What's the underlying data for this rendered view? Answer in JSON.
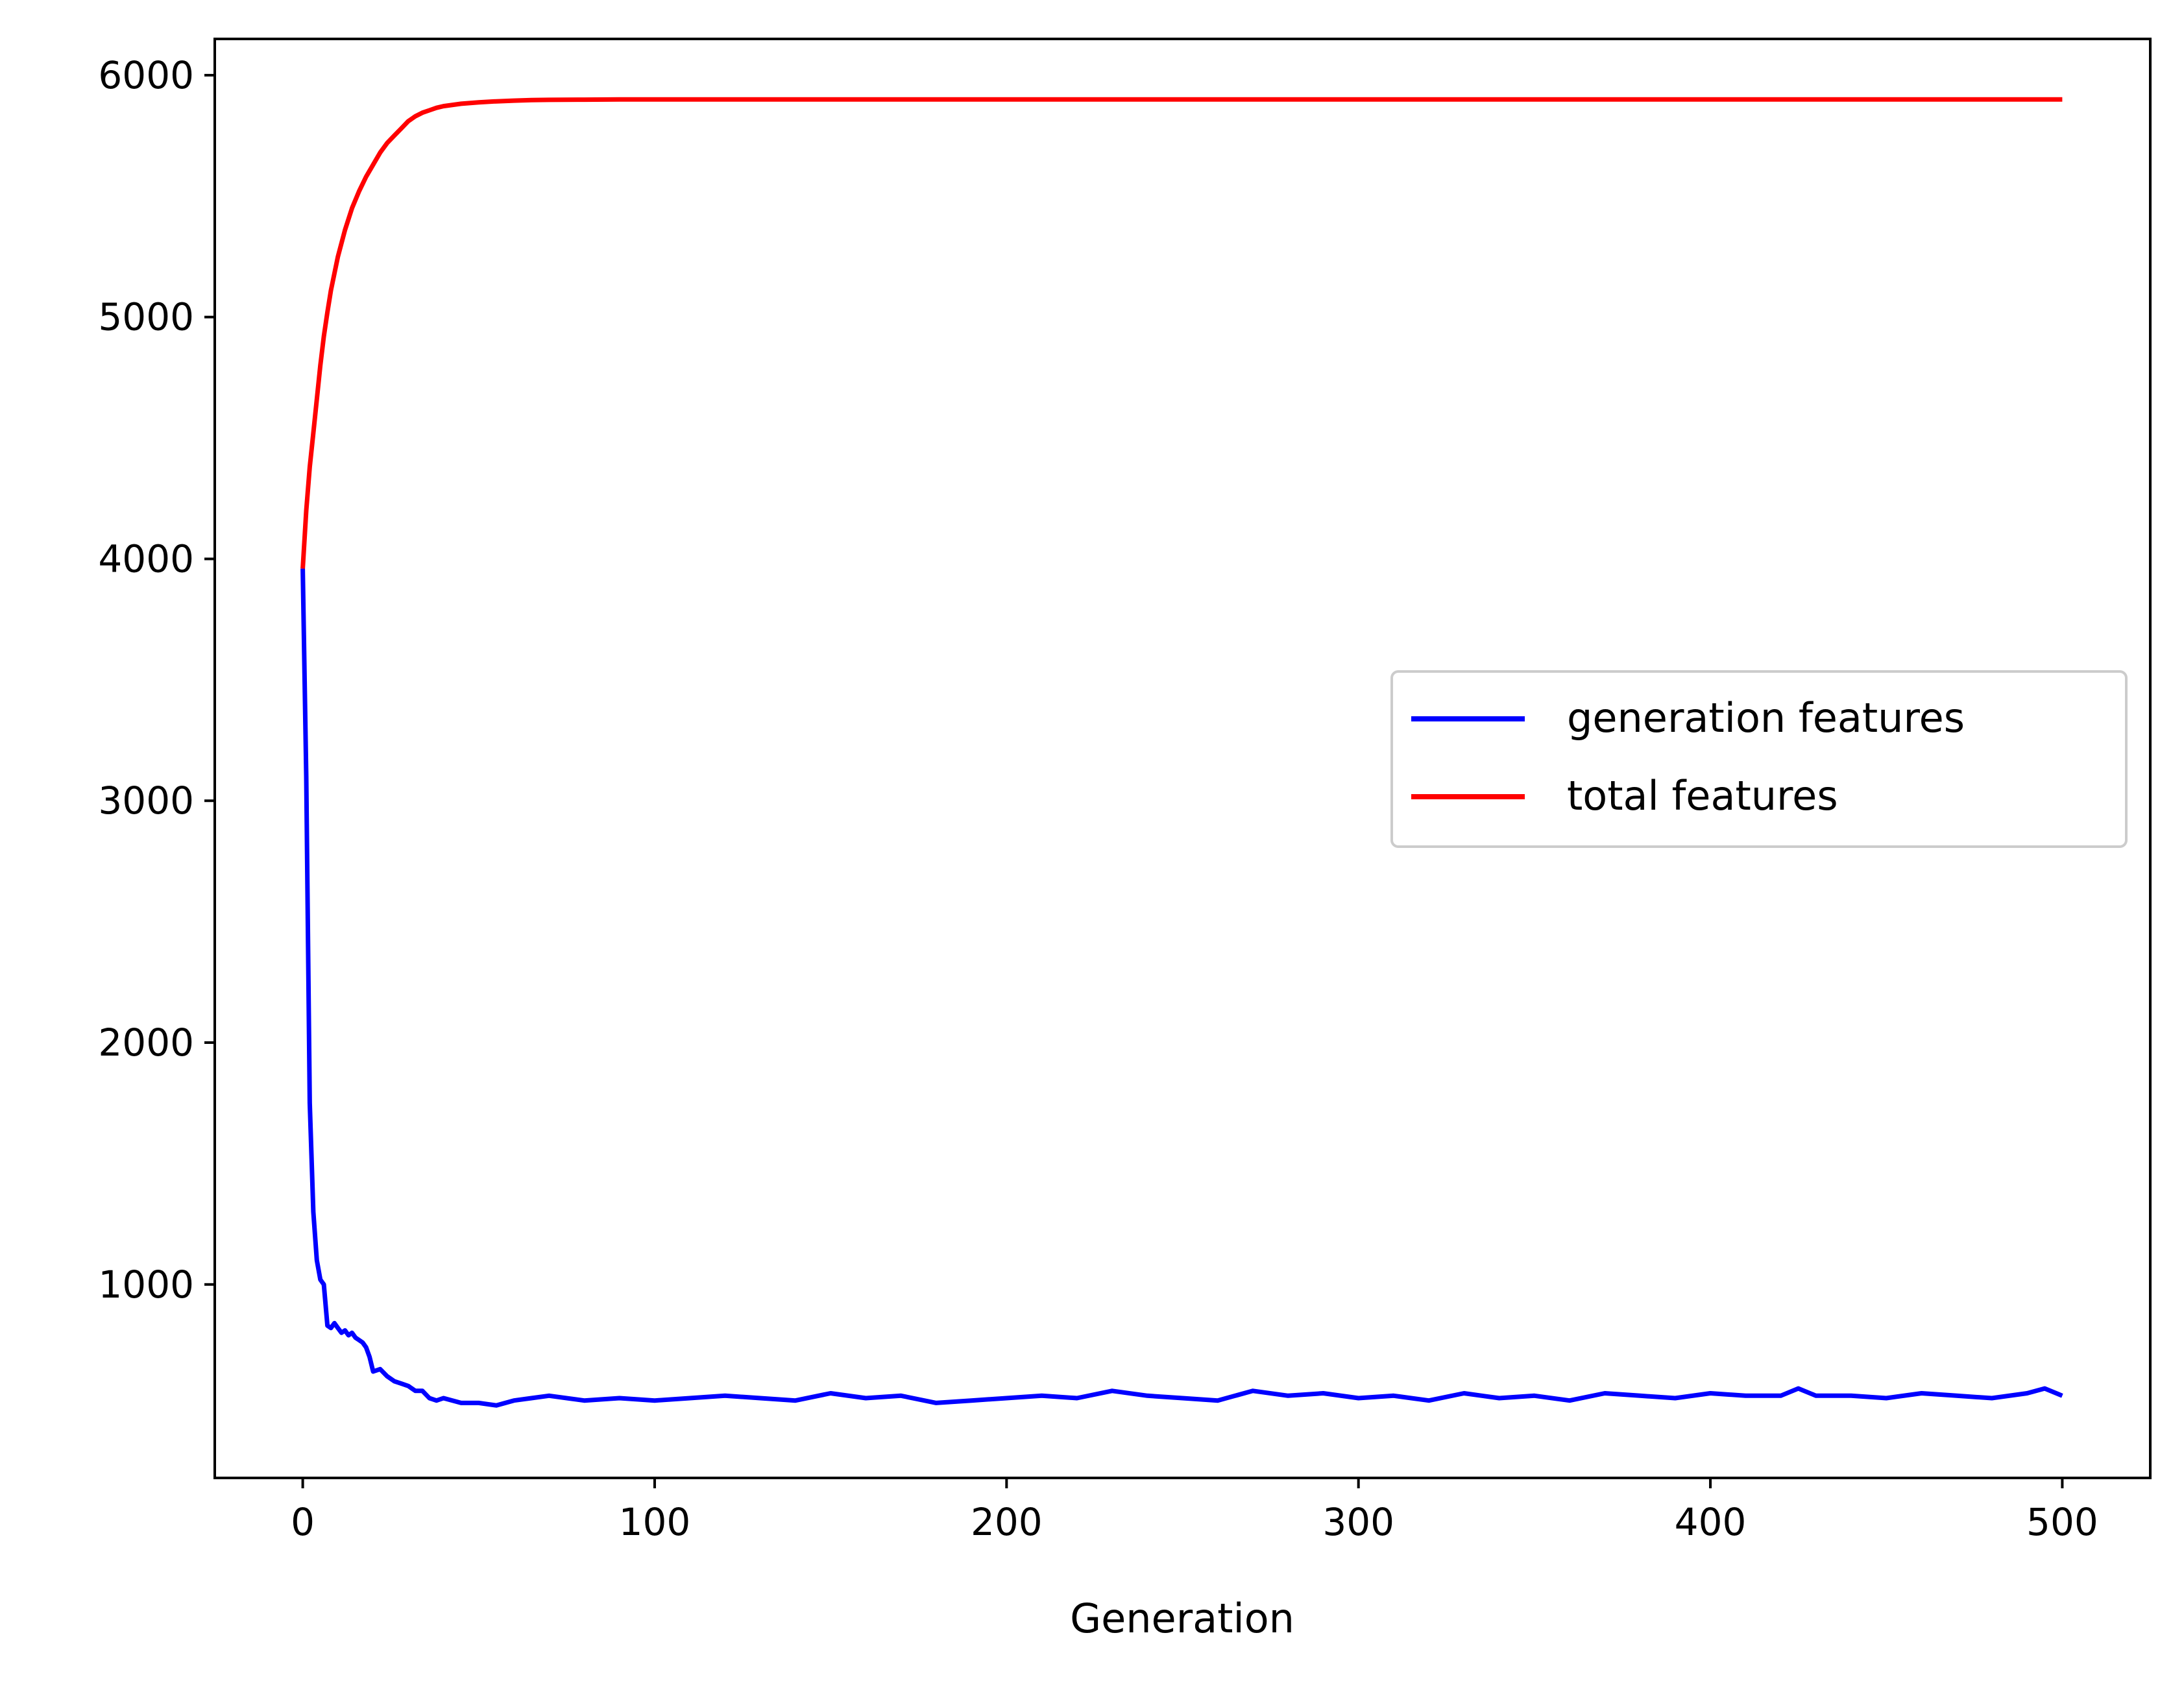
{
  "chart_data": {
    "type": "line",
    "title": "",
    "xlabel": "Generation",
    "ylabel": "",
    "xlim": [
      -25,
      525
    ],
    "ylim": [
      200,
      6150
    ],
    "xticks": [
      0,
      100,
      200,
      300,
      400,
      500
    ],
    "yticks": [
      1000,
      2000,
      3000,
      4000,
      5000,
      6000
    ],
    "grid": false,
    "legend_position": "center-right",
    "series": [
      {
        "name": "generation features",
        "color": "#0000ff",
        "x": [
          0,
          1,
          2,
          3,
          4,
          5,
          6,
          7,
          8,
          9,
          10,
          11,
          12,
          13,
          14,
          15,
          16,
          17,
          18,
          19,
          20,
          22,
          24,
          26,
          28,
          30,
          32,
          34,
          36,
          38,
          40,
          45,
          50,
          55,
          60,
          65,
          70,
          80,
          90,
          100,
          110,
          120,
          130,
          140,
          150,
          160,
          170,
          180,
          190,
          200,
          210,
          220,
          230,
          240,
          250,
          260,
          270,
          280,
          290,
          300,
          310,
          320,
          330,
          340,
          350,
          360,
          370,
          380,
          390,
          400,
          410,
          420,
          425,
          430,
          440,
          450,
          460,
          470,
          480,
          490,
          495,
          500
        ],
        "y": [
          3960,
          3100,
          1750,
          1300,
          1100,
          1020,
          1000,
          830,
          820,
          840,
          820,
          800,
          810,
          790,
          800,
          780,
          770,
          760,
          740,
          700,
          640,
          650,
          620,
          600,
          590,
          580,
          560,
          560,
          530,
          520,
          530,
          510,
          510,
          500,
          520,
          530,
          540,
          520,
          530,
          520,
          530,
          540,
          530,
          520,
          550,
          530,
          540,
          510,
          520,
          530,
          540,
          530,
          560,
          540,
          530,
          520,
          560,
          540,
          550,
          530,
          540,
          520,
          550,
          530,
          540,
          520,
          550,
          540,
          530,
          550,
          540,
          540,
          570,
          540,
          540,
          530,
          550,
          540,
          530,
          550,
          570,
          540
        ]
      },
      {
        "name": "total features",
        "color": "#ff0000",
        "x": [
          0,
          1,
          2,
          3,
          4,
          5,
          6,
          7,
          8,
          9,
          10,
          12,
          14,
          16,
          18,
          20,
          22,
          24,
          26,
          28,
          30,
          32,
          34,
          36,
          38,
          40,
          45,
          50,
          55,
          60,
          65,
          70,
          80,
          90,
          100,
          150,
          200,
          300,
          400,
          500
        ],
        "y": [
          3960,
          4200,
          4380,
          4520,
          4660,
          4800,
          4920,
          5020,
          5110,
          5180,
          5250,
          5360,
          5450,
          5520,
          5580,
          5630,
          5680,
          5720,
          5750,
          5780,
          5810,
          5830,
          5845,
          5855,
          5865,
          5872,
          5882,
          5888,
          5892,
          5895,
          5897,
          5898,
          5899,
          5900,
          5900,
          5900,
          5900,
          5900,
          5900,
          5900
        ]
      }
    ]
  }
}
